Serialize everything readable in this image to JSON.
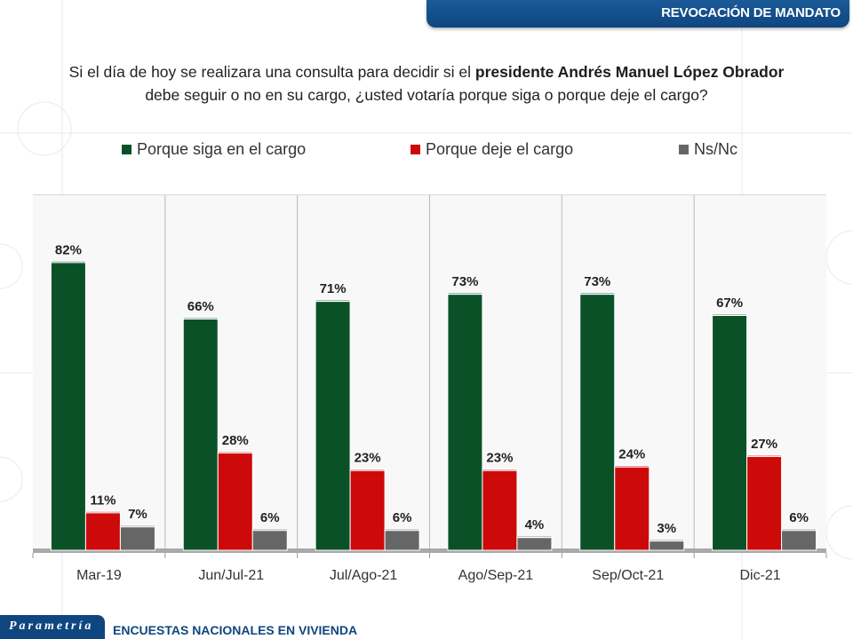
{
  "header": {
    "section_title": "REVOCACIÓN DE MANDATO"
  },
  "question": {
    "part1": "Si el día de hoy se realizara una consulta para decidir si el ",
    "bold": "presidente Andrés Manuel López Obrador",
    "part2": "debe seguir o no en su cargo, ¿usted votaría porque siga o porque deje el cargo?"
  },
  "footer": {
    "logo_text": "Parametría",
    "subtitle": "ENCUESTAS NACIONALES EN VIVIENDA"
  },
  "chart_data": {
    "type": "bar",
    "title": "",
    "xlabel": "",
    "ylabel": "",
    "ylim": [
      0,
      100
    ],
    "grid": false,
    "legend_position": "top",
    "categories": [
      "Mar-19",
      "Jun/Jul-21",
      "Jul/Ago-21",
      "Ago/Sep-21",
      "Sep/Oct-21",
      "Dic-21"
    ],
    "series": [
      {
        "name": "Porque siga en el cargo",
        "color": "#0b5128",
        "values": [
          82,
          66,
          71,
          73,
          73,
          67
        ]
      },
      {
        "name": "Porque deje el cargo",
        "color": "#cc0a0a",
        "values": [
          11,
          28,
          23,
          23,
          24,
          27
        ]
      },
      {
        "name": "Ns/Nc",
        "color": "#666666",
        "values": [
          7,
          6,
          6,
          4,
          3,
          6
        ]
      }
    ],
    "value_suffix": "%"
  }
}
